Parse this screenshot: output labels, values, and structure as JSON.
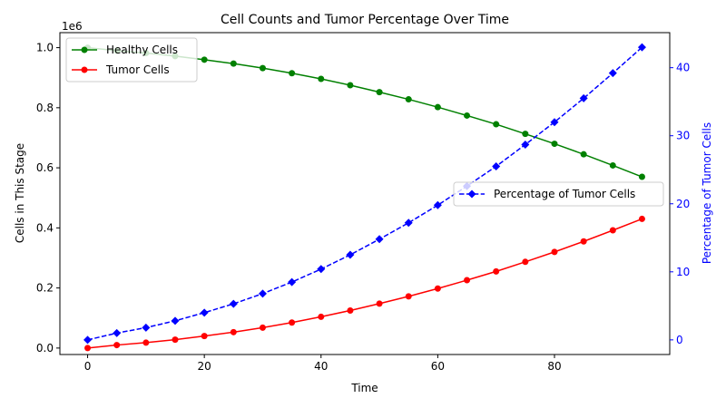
{
  "chart_data": {
    "type": "line",
    "title": "Cell Counts and Tumor Percentage Over Time",
    "xlabel": "Time",
    "ylabel_left": "Cells in This Stage",
    "ylabel_right": "Percentage of Tumor Cells",
    "left_offset_text": "1e6",
    "x": [
      0,
      5,
      10,
      15,
      20,
      25,
      30,
      35,
      40,
      45,
      50,
      55,
      60,
      65,
      70,
      75,
      80,
      85,
      90,
      95
    ],
    "xlim": [
      -4.75,
      99.75
    ],
    "xticks": [
      0,
      20,
      40,
      60,
      80
    ],
    "ylim_left": [
      -0.0215,
      1.05
    ],
    "yticks_left": [
      "0.0",
      "0.2",
      "0.4",
      "0.6",
      "0.8",
      "1.0"
    ],
    "yticks_left_values": [
      0,
      0.2,
      0.4,
      0.6,
      0.8,
      1.0
    ],
    "ylim_right": [
      -2.15,
      45.15
    ],
    "yticks_right": [
      0,
      10,
      20,
      30,
      40
    ],
    "series_left": [
      {
        "name": "Healthy Cells",
        "color": "#008000",
        "marker": "circle",
        "linestyle": "solid",
        "values": [
          1.0,
          0.99,
          0.982,
          0.972,
          0.96,
          0.947,
          0.932,
          0.915,
          0.896,
          0.875,
          0.852,
          0.828,
          0.802,
          0.774,
          0.745,
          0.713,
          0.68,
          0.645,
          0.608,
          0.57
        ]
      },
      {
        "name": "Tumor Cells",
        "color": "#ff0000",
        "marker": "circle",
        "linestyle": "solid",
        "values": [
          0.0,
          0.01,
          0.018,
          0.028,
          0.04,
          0.053,
          0.068,
          0.085,
          0.104,
          0.125,
          0.148,
          0.172,
          0.198,
          0.226,
          0.255,
          0.287,
          0.32,
          0.355,
          0.392,
          0.43
        ]
      }
    ],
    "series_right": [
      {
        "name": "Percentage of Tumor Cells",
        "color": "#0000ff",
        "marker": "diamond",
        "linestyle": "dashed",
        "values": [
          0.0,
          1.0,
          1.8,
          2.8,
          4.0,
          5.3,
          6.8,
          8.5,
          10.4,
          12.5,
          14.8,
          17.2,
          19.8,
          22.6,
          25.5,
          28.7,
          32.0,
          35.5,
          39.2,
          43.0
        ]
      }
    ],
    "legend_left_placement": "upper-left",
    "legend_right_placement": "center-right",
    "grid": false
  }
}
